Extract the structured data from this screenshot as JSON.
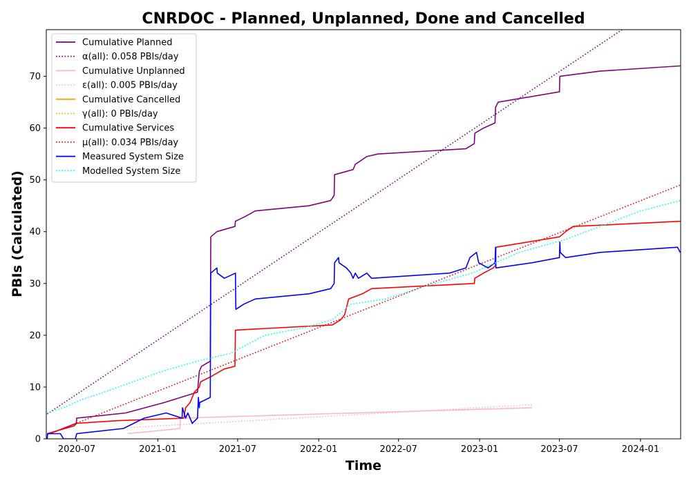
{
  "chart_data": {
    "type": "line",
    "title": "CNRDOC - Planned, Unplanned, Done  and Cancelled",
    "xlabel": "Time",
    "ylabel": "PBIs (Calculated)",
    "xlim": [
      "2020-04-23",
      "2024-04-01"
    ],
    "ylim": [
      0,
      79
    ],
    "x_ticks": [
      {
        "date": "2020-07-01",
        "label": "2020-07"
      },
      {
        "date": "2021-01-01",
        "label": "2021-01"
      },
      {
        "date": "2021-07-01",
        "label": "2021-07"
      },
      {
        "date": "2022-01-01",
        "label": "2022-01"
      },
      {
        "date": "2022-07-01",
        "label": "2022-07"
      },
      {
        "date": "2023-01-01",
        "label": "2023-01"
      },
      {
        "date": "2023-07-01",
        "label": "2023-07"
      },
      {
        "date": "2024-01-01",
        "label": "2024-01"
      }
    ],
    "y_ticks": [
      0,
      10,
      20,
      30,
      40,
      50,
      60,
      70
    ],
    "grid": false,
    "legend_position": "top-left",
    "series": [
      {
        "name": "Cumulative Planned",
        "style": "solid",
        "color": "#800080",
        "points": [
          [
            "2020-05-01",
            1
          ],
          [
            "2020-06-30",
            3
          ],
          [
            "2020-07-01",
            4
          ],
          [
            "2020-10-20",
            5
          ],
          [
            "2021-01-15",
            7
          ],
          [
            "2021-04-01",
            9
          ],
          [
            "2021-04-05",
            13
          ],
          [
            "2021-04-10",
            14
          ],
          [
            "2021-04-30",
            15
          ],
          [
            "2021-05-01",
            39
          ],
          [
            "2021-05-15",
            40
          ],
          [
            "2021-06-25",
            41
          ],
          [
            "2021-06-26",
            42
          ],
          [
            "2021-07-20",
            43
          ],
          [
            "2021-08-10",
            44
          ],
          [
            "2021-12-10",
            45
          ],
          [
            "2022-01-28",
            46
          ],
          [
            "2022-02-05",
            47
          ],
          [
            "2022-02-06",
            51
          ],
          [
            "2022-03-20",
            52
          ],
          [
            "2022-03-25",
            53
          ],
          [
            "2022-04-20",
            54.5
          ],
          [
            "2022-05-15",
            55
          ],
          [
            "2022-12-01",
            56
          ],
          [
            "2022-12-20",
            57
          ],
          [
            "2022-12-21",
            59
          ],
          [
            "2023-01-10",
            60
          ],
          [
            "2023-02-05",
            61
          ],
          [
            "2023-02-06",
            64
          ],
          [
            "2023-02-12",
            65
          ],
          [
            "2023-07-01",
            67
          ],
          [
            "2023-07-02",
            70
          ],
          [
            "2023-10-01",
            71
          ],
          [
            "2024-03-31",
            72
          ]
        ]
      },
      {
        "name": "α(all): 0.058 PBIs/day",
        "style": "dotted",
        "color": "#800080",
        "points": [
          [
            "2020-04-25",
            4.8
          ],
          [
            "2024-03-31",
            86.5
          ]
        ]
      },
      {
        "name": "Cumulative Unplanned",
        "style": "solid",
        "color": "#ffb6c1",
        "points": [
          [
            "2020-10-25",
            1
          ],
          [
            "2021-02-20",
            2
          ],
          [
            "2021-02-21",
            4
          ],
          [
            "2022-01-01",
            4.8
          ],
          [
            "2022-09-01",
            5.4
          ],
          [
            "2023-04-30",
            6
          ]
        ]
      },
      {
        "name": "ε(all): 0.005 PBIs/day",
        "style": "dotted",
        "color": "#ffb6c1",
        "points": [
          [
            "2020-11-01",
            2.2
          ],
          [
            "2023-04-30",
            6.6
          ]
        ]
      },
      {
        "name": "Cumulative Cancelled",
        "style": "solid",
        "color": "#ffa500",
        "points": []
      },
      {
        "name": "γ(all): 0 PBIs/day",
        "style": "dotted",
        "color": "#ffa500",
        "points": []
      },
      {
        "name": "Cumulative Services",
        "style": "solid",
        "color": "#ff0000",
        "points": [
          [
            "2020-04-25",
            1
          ],
          [
            "2020-06-25",
            2.5
          ],
          [
            "2020-07-01",
            3
          ],
          [
            "2020-10-01",
            3.5
          ],
          [
            "2021-03-01",
            4
          ],
          [
            "2021-03-05",
            6
          ],
          [
            "2021-03-15",
            7
          ],
          [
            "2021-03-25",
            9
          ],
          [
            "2021-04-05",
            10
          ],
          [
            "2021-04-08",
            11
          ],
          [
            "2021-05-01",
            12
          ],
          [
            "2021-06-01",
            13.5
          ],
          [
            "2021-06-25",
            14
          ],
          [
            "2021-06-26",
            21
          ],
          [
            "2022-02-01",
            22
          ],
          [
            "2022-02-20",
            23
          ],
          [
            "2022-03-01",
            24
          ],
          [
            "2022-03-10",
            27
          ],
          [
            "2022-04-10",
            28
          ],
          [
            "2022-05-01",
            29
          ],
          [
            "2022-12-20",
            30
          ],
          [
            "2022-12-21",
            31
          ],
          [
            "2023-01-10",
            32
          ],
          [
            "2023-02-01",
            33
          ],
          [
            "2023-02-06",
            33.5
          ],
          [
            "2023-02-07",
            37
          ],
          [
            "2023-07-01",
            39
          ],
          [
            "2023-07-15",
            40
          ],
          [
            "2023-08-01",
            41
          ],
          [
            "2024-03-31",
            42
          ]
        ]
      },
      {
        "name": "μ(all): 0.034 PBIs/day",
        "style": "dotted",
        "color": "#ff0000",
        "points": [
          [
            "2020-04-25",
            0.8
          ],
          [
            "2024-03-31",
            49
          ]
        ]
      },
      {
        "name": "Measured System Size",
        "style": "solid",
        "color": "#0000ff",
        "points": [
          [
            "2020-04-25",
            0
          ],
          [
            "2020-04-26",
            1
          ],
          [
            "2020-05-25",
            1
          ],
          [
            "2020-06-01",
            0
          ],
          [
            "2020-06-28",
            0
          ],
          [
            "2020-07-01",
            1
          ],
          [
            "2020-10-15",
            2
          ],
          [
            "2020-12-01",
            4
          ],
          [
            "2021-01-20",
            5
          ],
          [
            "2021-02-25",
            4
          ],
          [
            "2021-02-26",
            6
          ],
          [
            "2021-03-05",
            4
          ],
          [
            "2021-03-10",
            5
          ],
          [
            "2021-03-20",
            3
          ],
          [
            "2021-04-01",
            4
          ],
          [
            "2021-04-03",
            8
          ],
          [
            "2021-04-05",
            6
          ],
          [
            "2021-04-06",
            7
          ],
          [
            "2021-04-30",
            8
          ],
          [
            "2021-05-01",
            32
          ],
          [
            "2021-05-15",
            33
          ],
          [
            "2021-05-16",
            32
          ],
          [
            "2021-06-01",
            31
          ],
          [
            "2021-06-26",
            32
          ],
          [
            "2021-06-27",
            25
          ],
          [
            "2021-07-15",
            26
          ],
          [
            "2021-08-10",
            27
          ],
          [
            "2021-12-10",
            28
          ],
          [
            "2022-01-28",
            29
          ],
          [
            "2022-02-05",
            30
          ],
          [
            "2022-02-06",
            34
          ],
          [
            "2022-02-15",
            35
          ],
          [
            "2022-02-16",
            34
          ],
          [
            "2022-03-05",
            33
          ],
          [
            "2022-03-15",
            32
          ],
          [
            "2022-03-20",
            31
          ],
          [
            "2022-03-25",
            32
          ],
          [
            "2022-04-01",
            31
          ],
          [
            "2022-04-20",
            32
          ],
          [
            "2022-05-01",
            31
          ],
          [
            "2022-10-25",
            32
          ],
          [
            "2022-12-01",
            33
          ],
          [
            "2022-12-10",
            35
          ],
          [
            "2022-12-25",
            36
          ],
          [
            "2022-12-30",
            34
          ],
          [
            "2023-01-20",
            33
          ],
          [
            "2023-02-05",
            34
          ],
          [
            "2023-02-06",
            37
          ],
          [
            "2023-02-07",
            33
          ],
          [
            "2023-04-30",
            34
          ],
          [
            "2023-07-01",
            35
          ],
          [
            "2023-07-02",
            38
          ],
          [
            "2023-07-03",
            36
          ],
          [
            "2023-07-15",
            35
          ],
          [
            "2023-10-01",
            36
          ],
          [
            "2024-03-25",
            37
          ],
          [
            "2024-03-31",
            36
          ]
        ]
      },
      {
        "name": "Modelled System Size",
        "style": "dotted",
        "color": "#00ffff",
        "points": [
          [
            "2020-04-25",
            5
          ],
          [
            "2020-06-01",
            6
          ],
          [
            "2020-07-10",
            7.5
          ],
          [
            "2020-09-01",
            9
          ],
          [
            "2020-10-20",
            10.5
          ],
          [
            "2021-01-10",
            13
          ],
          [
            "2021-04-01",
            15
          ],
          [
            "2021-06-15",
            16.5
          ],
          [
            "2021-09-01",
            20
          ],
          [
            "2021-12-01",
            21.5
          ],
          [
            "2022-02-01",
            23
          ],
          [
            "2022-03-15",
            26
          ],
          [
            "2022-06-01",
            27
          ],
          [
            "2022-09-01",
            29.5
          ],
          [
            "2022-12-15",
            32
          ],
          [
            "2023-04-01",
            36
          ],
          [
            "2023-07-15",
            38.5
          ],
          [
            "2023-10-01",
            41
          ],
          [
            "2024-01-01",
            44
          ],
          [
            "2024-03-31",
            46
          ]
        ]
      }
    ]
  }
}
